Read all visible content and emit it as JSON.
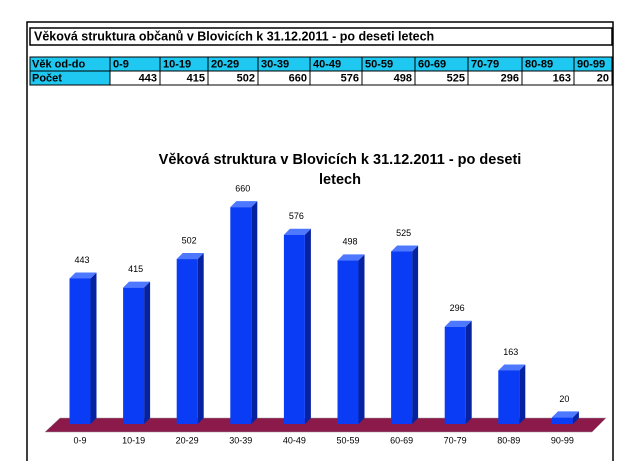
{
  "table": {
    "title": "Věková struktura občanů v Blovicích  k 31.12.2011 - po deseti letech",
    "row_labels": [
      "Věk od-do",
      "Počet"
    ]
  },
  "chart_data": {
    "type": "bar3d",
    "title": "Věková struktura v Blovicích  k 31.12.2011 - po deseti letech",
    "categories": [
      "0-9",
      "10-19",
      "20-29",
      "30-39",
      "40-49",
      "50-59",
      "60-69",
      "70-79",
      "80-89",
      "90-99"
    ],
    "values": [
      443,
      415,
      502,
      660,
      576,
      498,
      525,
      296,
      163,
      20
    ],
    "color": "#0a3cf5",
    "ylim": [
      0,
      700
    ]
  }
}
